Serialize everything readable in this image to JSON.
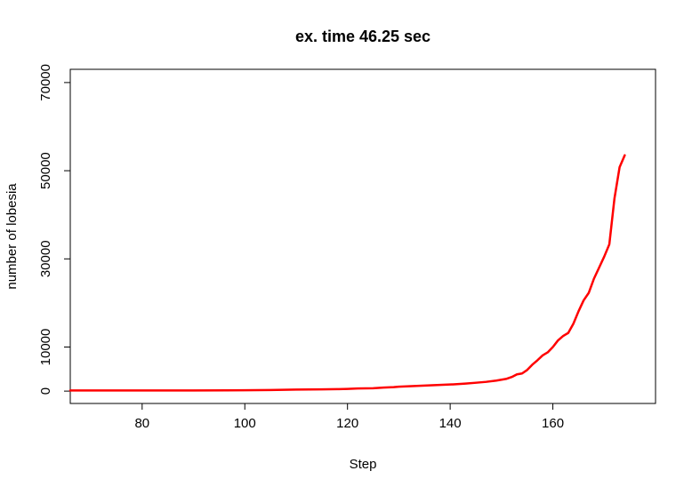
{
  "chart_data": {
    "type": "line",
    "title": "ex. time 46.25 sec",
    "xlabel": "Step",
    "ylabel": "number of lobesia",
    "xlim": [
      66,
      180
    ],
    "ylim": [
      -2800,
      73000
    ],
    "x_ticks": [
      80,
      100,
      120,
      140,
      160
    ],
    "y_ticks": [
      0,
      10000,
      30000,
      50000,
      70000
    ],
    "grid": false,
    "legend": "none",
    "series": [
      {
        "color": "#ff0000",
        "x": [
          66,
          70,
          80,
          90,
          100,
          105,
          110,
          115,
          118,
          120,
          122,
          125,
          127,
          129,
          130,
          132,
          134,
          136,
          138,
          140,
          141,
          143,
          145,
          147,
          149,
          151,
          152,
          153,
          154,
          155,
          156,
          157,
          158,
          159,
          160,
          161,
          162,
          163,
          164,
          165,
          166,
          167,
          168,
          169,
          170,
          171,
          172,
          173,
          174
        ],
        "y": [
          150,
          150,
          150,
          150,
          200,
          250,
          350,
          400,
          450,
          500,
          600,
          650,
          800,
          900,
          1000,
          1100,
          1200,
          1300,
          1400,
          1500,
          1550,
          1700,
          1900,
          2100,
          2400,
          2800,
          3200,
          3800,
          4000,
          4800,
          6000,
          7000,
          8100,
          8800,
          10000,
          11500,
          12500,
          13200,
          15300,
          18100,
          20600,
          22300,
          25500,
          28000,
          30500,
          33300,
          43700,
          50800,
          53500
        ]
      }
    ]
  }
}
